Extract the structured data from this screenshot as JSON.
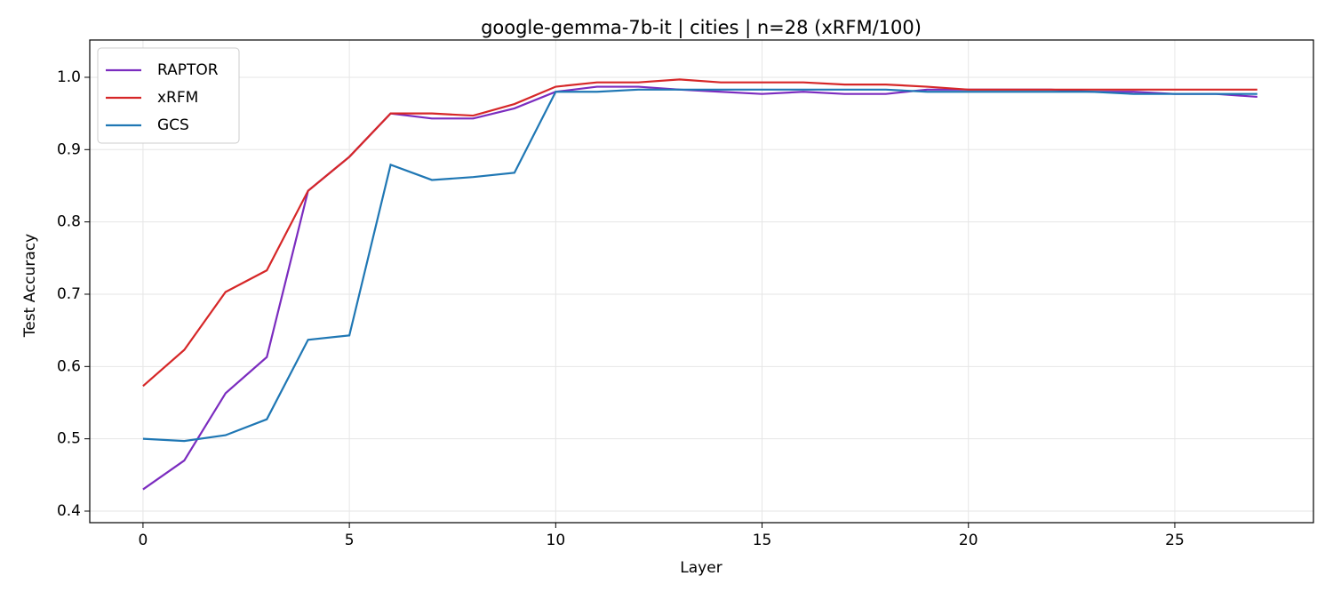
{
  "chart_data": {
    "type": "line",
    "title": "google-gemma-7b-it | cities | n=28 (xRFM/100)",
    "xlabel": "Layer",
    "ylabel": "Test Accuracy",
    "x": [
      0,
      1,
      2,
      3,
      4,
      5,
      6,
      7,
      8,
      9,
      10,
      11,
      12,
      13,
      14,
      15,
      16,
      17,
      18,
      19,
      20,
      21,
      22,
      23,
      24,
      25,
      26,
      27
    ],
    "series": [
      {
        "name": "RAPTOR",
        "color": "#7b2cbf",
        "values": [
          0.43,
          0.47,
          0.563,
          0.613,
          0.843,
          0.89,
          0.95,
          0.943,
          0.943,
          0.957,
          0.98,
          0.987,
          0.987,
          0.983,
          0.98,
          0.977,
          0.98,
          0.977,
          0.977,
          0.983,
          0.983,
          0.983,
          0.983,
          0.98,
          0.98,
          0.977,
          0.977,
          0.973
        ]
      },
      {
        "name": "xRFM",
        "color": "#d62728",
        "values": [
          0.573,
          0.623,
          0.703,
          0.733,
          0.843,
          0.89,
          0.95,
          0.95,
          0.947,
          0.963,
          0.987,
          0.993,
          0.993,
          0.997,
          0.993,
          0.993,
          0.993,
          0.99,
          0.99,
          0.987,
          0.983,
          0.983,
          0.983,
          0.983,
          0.983,
          0.983,
          0.983,
          0.983
        ]
      },
      {
        "name": "GCS",
        "color": "#1f77b4",
        "values": [
          0.5,
          0.497,
          0.505,
          0.527,
          0.637,
          0.643,
          0.879,
          0.858,
          0.862,
          0.868,
          0.98,
          0.98,
          0.983,
          0.983,
          0.983,
          0.983,
          0.983,
          0.983,
          0.983,
          0.98,
          0.98,
          0.98,
          0.98,
          0.98,
          0.977,
          0.977,
          0.977,
          0.977
        ]
      }
    ],
    "xlim": [
      -1.29,
      28.36
    ],
    "ylim": [
      0.384,
      1.0516
    ],
    "xticks": [
      0,
      5,
      10,
      15,
      20,
      25
    ],
    "yticks": [
      0.4,
      0.5,
      0.6,
      0.7,
      0.8,
      0.9,
      {
        "value": 1,
        "label": "1.0"
      }
    ],
    "grid": true,
    "legend": "upper left"
  }
}
